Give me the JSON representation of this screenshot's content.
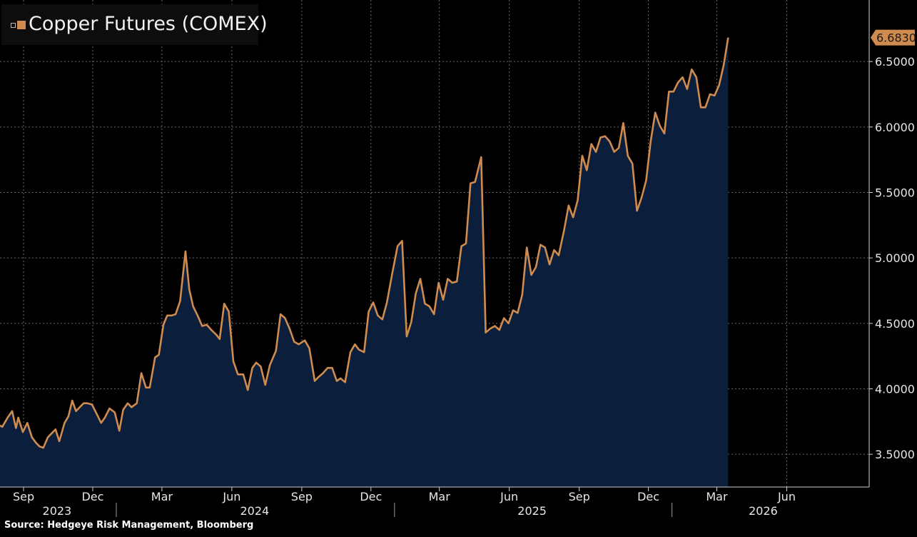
{
  "chart_data": {
    "type": "area",
    "title": "",
    "legend": {
      "entries": [
        {
          "name": "Copper Futures (COMEX)",
          "color": "#d08c4f"
        }
      ],
      "placement": "top-left"
    },
    "last_value_label": "6.6830",
    "source": "Source: Hedgeye Risk Management, Bloomberg",
    "y_ticks": [
      "3.5000",
      "4.0000",
      "4.5000",
      "5.0000",
      "5.5000",
      "6.0000",
      "6.5000"
    ],
    "ylim": [
      3.25,
      6.97
    ],
    "x_month_ticks": [
      {
        "label": "Sep",
        "date": "2023-09-01"
      },
      {
        "label": "Dec",
        "date": "2023-12-01"
      },
      {
        "label": "Mar",
        "date": "2024-03-01"
      },
      {
        "label": "Jun",
        "date": "2024-06-01"
      },
      {
        "label": "Sep",
        "date": "2024-09-01"
      },
      {
        "label": "Dec",
        "date": "2024-12-01"
      },
      {
        "label": "Mar",
        "date": "2025-03-01"
      },
      {
        "label": "Jun",
        "date": "2025-06-01"
      },
      {
        "label": "Sep",
        "date": "2025-09-01"
      },
      {
        "label": "Dec",
        "date": "2025-12-01"
      },
      {
        "label": "Mar",
        "date": "2026-03-01"
      },
      {
        "label": "Jun",
        "date": "2026-06-01"
      }
    ],
    "x_year_labels": [
      {
        "label": "2023",
        "date": "2023-10-15"
      },
      {
        "label": "2024",
        "date": "2024-07-01"
      },
      {
        "label": "2025",
        "date": "2025-07-01"
      },
      {
        "label": "2026",
        "date": "2026-05-01"
      }
    ],
    "x_year_dividers": [
      "2024-01-01",
      "2025-01-01",
      "2026-01-01"
    ],
    "xlim": [
      "2023-08-01",
      "2026-08-25"
    ],
    "grid": true,
    "colors": {
      "line": "#d08c4f",
      "fill": "#0b1e3c",
      "grid": "#6a6a6a",
      "axis": "#cfcfcf"
    },
    "series": [
      {
        "name": "Copper Futures (COMEX)",
        "points": [
          [
            "2023-08-01",
            3.72
          ],
          [
            "2023-08-04",
            3.71
          ],
          [
            "2023-08-11",
            3.78
          ],
          [
            "2023-08-17",
            3.83
          ],
          [
            "2023-08-22",
            3.7
          ],
          [
            "2023-08-25",
            3.78
          ],
          [
            "2023-08-31",
            3.67
          ],
          [
            "2023-09-06",
            3.74
          ],
          [
            "2023-09-12",
            3.63
          ],
          [
            "2023-09-17",
            3.59
          ],
          [
            "2023-09-22",
            3.56
          ],
          [
            "2023-09-27",
            3.55
          ],
          [
            "2023-10-03",
            3.63
          ],
          [
            "2023-10-08",
            3.66
          ],
          [
            "2023-10-13",
            3.69
          ],
          [
            "2023-10-18",
            3.6
          ],
          [
            "2023-10-25",
            3.74
          ],
          [
            "2023-10-30",
            3.79
          ],
          [
            "2023-11-04",
            3.91
          ],
          [
            "2023-11-09",
            3.83
          ],
          [
            "2023-11-14",
            3.86
          ],
          [
            "2023-11-19",
            3.89
          ],
          [
            "2023-11-24",
            3.89
          ],
          [
            "2023-11-30",
            3.88
          ],
          [
            "2023-12-07",
            3.8
          ],
          [
            "2023-12-12",
            3.74
          ],
          [
            "2023-12-17",
            3.78
          ],
          [
            "2023-12-23",
            3.85
          ],
          [
            "2023-12-30",
            3.82
          ],
          [
            "2024-01-05",
            3.68
          ],
          [
            "2024-01-10",
            3.84
          ],
          [
            "2024-01-16",
            3.89
          ],
          [
            "2024-01-21",
            3.86
          ],
          [
            "2024-01-28",
            3.89
          ],
          [
            "2024-02-03",
            4.12
          ],
          [
            "2024-02-09",
            4.01
          ],
          [
            "2024-02-14",
            4.01
          ],
          [
            "2024-02-21",
            4.24
          ],
          [
            "2024-02-26",
            4.26
          ],
          [
            "2024-03-03",
            4.49
          ],
          [
            "2024-03-08",
            4.56
          ],
          [
            "2024-03-14",
            4.56
          ],
          [
            "2024-03-19",
            4.57
          ],
          [
            "2024-03-25",
            4.67
          ],
          [
            "2024-04-01",
            5.05
          ],
          [
            "2024-04-06",
            4.76
          ],
          [
            "2024-04-11",
            4.63
          ],
          [
            "2024-04-17",
            4.56
          ],
          [
            "2024-04-23",
            4.48
          ],
          [
            "2024-04-29",
            4.49
          ],
          [
            "2024-05-05",
            4.45
          ],
          [
            "2024-05-12",
            4.41
          ],
          [
            "2024-05-16",
            4.38
          ],
          [
            "2024-05-22",
            4.65
          ],
          [
            "2024-05-28",
            4.59
          ],
          [
            "2024-06-03",
            4.21
          ],
          [
            "2024-06-09",
            4.11
          ],
          [
            "2024-06-16",
            4.11
          ],
          [
            "2024-06-22",
            3.99
          ],
          [
            "2024-06-28",
            4.16
          ],
          [
            "2024-07-03",
            4.2
          ],
          [
            "2024-07-09",
            4.17
          ],
          [
            "2024-07-15",
            4.03
          ],
          [
            "2024-07-21",
            4.18
          ],
          [
            "2024-07-29",
            4.29
          ],
          [
            "2024-08-04",
            4.57
          ],
          [
            "2024-08-10",
            4.54
          ],
          [
            "2024-08-16",
            4.46
          ],
          [
            "2024-08-22",
            4.36
          ],
          [
            "2024-08-28",
            4.34
          ],
          [
            "2024-09-05",
            4.37
          ],
          [
            "2024-09-11",
            4.31
          ],
          [
            "2024-09-18",
            4.06
          ],
          [
            "2024-09-23",
            4.09
          ],
          [
            "2024-09-29",
            4.12
          ],
          [
            "2024-10-05",
            4.16
          ],
          [
            "2024-10-11",
            4.16
          ],
          [
            "2024-10-17",
            4.06
          ],
          [
            "2024-10-22",
            4.08
          ],
          [
            "2024-10-28",
            4.05
          ],
          [
            "2024-11-04",
            4.28
          ],
          [
            "2024-11-10",
            4.34
          ],
          [
            "2024-11-15",
            4.3
          ],
          [
            "2024-11-22",
            4.28
          ],
          [
            "2024-11-28",
            4.59
          ],
          [
            "2024-12-04",
            4.66
          ],
          [
            "2024-12-10",
            4.56
          ],
          [
            "2024-12-16",
            4.53
          ],
          [
            "2024-12-22",
            4.66
          ],
          [
            "2024-12-29",
            4.88
          ],
          [
            "2025-01-05",
            5.09
          ],
          [
            "2025-01-11",
            5.13
          ],
          [
            "2025-01-17",
            4.4
          ],
          [
            "2025-01-23",
            4.51
          ],
          [
            "2025-01-29",
            4.73
          ],
          [
            "2025-02-04",
            4.84
          ],
          [
            "2025-02-10",
            4.65
          ],
          [
            "2025-02-16",
            4.63
          ],
          [
            "2025-02-22",
            4.57
          ],
          [
            "2025-02-28",
            4.81
          ],
          [
            "2025-03-06",
            4.68
          ],
          [
            "2025-03-12",
            4.84
          ],
          [
            "2025-03-18",
            4.81
          ],
          [
            "2025-03-24",
            4.82
          ],
          [
            "2025-03-30",
            5.09
          ],
          [
            "2025-04-05",
            5.11
          ],
          [
            "2025-04-11",
            5.57
          ],
          [
            "2025-04-17",
            5.58
          ],
          [
            "2025-04-25",
            5.77
          ],
          [
            "2025-05-01",
            4.43
          ],
          [
            "2025-05-07",
            4.46
          ],
          [
            "2025-05-13",
            4.48
          ],
          [
            "2025-05-19",
            4.45
          ],
          [
            "2025-05-25",
            4.54
          ],
          [
            "2025-05-31",
            4.5
          ],
          [
            "2025-06-06",
            4.6
          ],
          [
            "2025-06-12",
            4.58
          ],
          [
            "2025-06-18",
            4.72
          ],
          [
            "2025-06-24",
            5.08
          ],
          [
            "2025-06-30",
            4.87
          ],
          [
            "2025-07-06",
            4.93
          ],
          [
            "2025-07-12",
            5.1
          ],
          [
            "2025-07-18",
            5.08
          ],
          [
            "2025-07-24",
            4.95
          ],
          [
            "2025-07-30",
            5.06
          ],
          [
            "2025-08-05",
            5.02
          ],
          [
            "2025-08-12",
            5.21
          ],
          [
            "2025-08-18",
            5.4
          ],
          [
            "2025-08-24",
            5.31
          ],
          [
            "2025-08-30",
            5.44
          ],
          [
            "2025-09-05",
            5.78
          ],
          [
            "2025-09-11",
            5.67
          ],
          [
            "2025-09-17",
            5.87
          ],
          [
            "2025-09-23",
            5.81
          ],
          [
            "2025-09-29",
            5.92
          ],
          [
            "2025-10-05",
            5.93
          ],
          [
            "2025-10-11",
            5.89
          ],
          [
            "2025-10-17",
            5.81
          ],
          [
            "2025-10-23",
            5.84
          ],
          [
            "2025-10-29",
            6.03
          ],
          [
            "2025-11-04",
            5.78
          ],
          [
            "2025-11-10",
            5.72
          ],
          [
            "2025-11-16",
            5.36
          ],
          [
            "2025-11-22",
            5.46
          ],
          [
            "2025-11-28",
            5.59
          ],
          [
            "2025-12-04",
            5.89
          ],
          [
            "2025-12-10",
            6.11
          ],
          [
            "2025-12-16",
            6.01
          ],
          [
            "2025-12-22",
            5.95
          ],
          [
            "2025-12-28",
            6.27
          ],
          [
            "2026-01-03",
            6.27
          ],
          [
            "2026-01-09",
            6.34
          ],
          [
            "2026-01-15",
            6.38
          ],
          [
            "2026-01-21",
            6.29
          ],
          [
            "2026-01-27",
            6.44
          ],
          [
            "2026-02-02",
            6.38
          ],
          [
            "2026-02-08",
            6.15
          ],
          [
            "2026-02-14",
            6.15
          ],
          [
            "2026-02-20",
            6.25
          ],
          [
            "2026-02-26",
            6.24
          ],
          [
            "2026-03-04",
            6.32
          ],
          [
            "2026-03-10",
            6.47
          ],
          [
            "2026-03-16",
            6.683
          ]
        ]
      }
    ]
  }
}
